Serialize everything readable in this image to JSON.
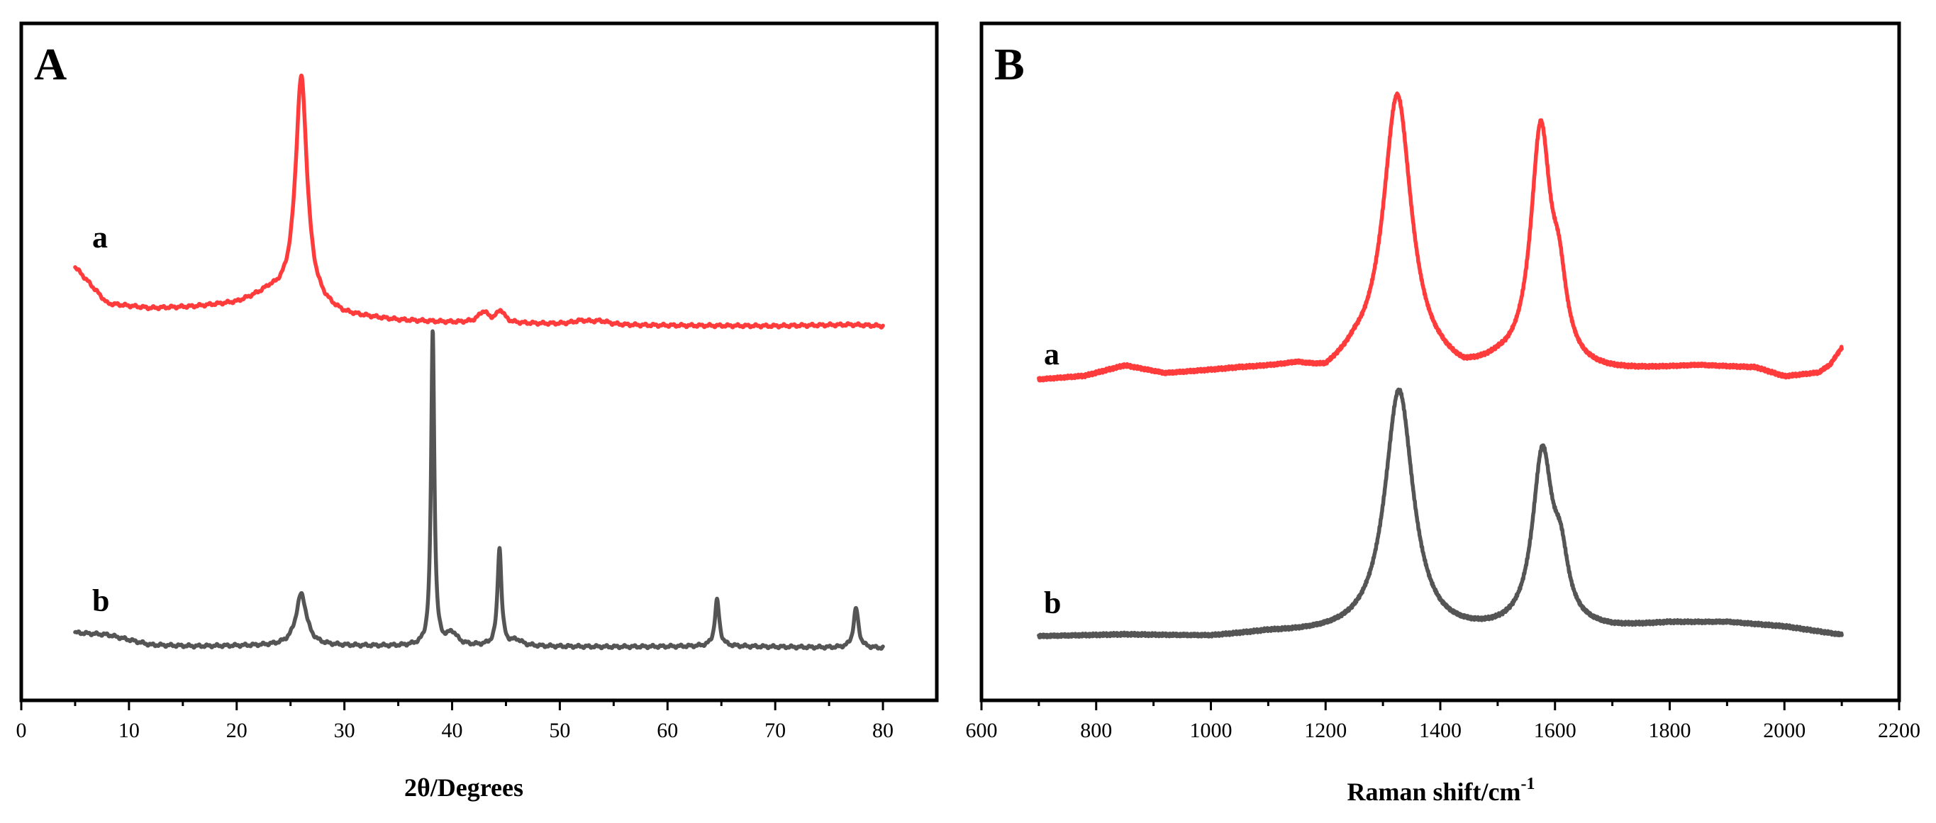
{
  "chart_data": [
    {
      "type": "line",
      "id": "A",
      "panel_label": "A",
      "title": "",
      "xlabel": "2θ/Degrees",
      "ylabel": "",
      "xlim": [
        0,
        85
      ],
      "ylim": [
        0,
        100
      ],
      "grid": false,
      "y_ticks_shown": false,
      "xticks": [
        0,
        10,
        20,
        30,
        40,
        50,
        60,
        70,
        80
      ],
      "xtick_labels": [
        "0",
        "10",
        "20",
        "30",
        "40",
        "50",
        "60",
        "70",
        "80"
      ],
      "series": [
        {
          "name": "a",
          "label": "a",
          "color": "#ff3b3b",
          "baseline": [
            [
              5,
              64
            ],
            [
              8,
              58.6
            ],
            [
              12,
              57.9
            ],
            [
              16,
              58.1
            ],
            [
              20,
              58.6
            ],
            [
              23,
              60
            ],
            [
              30,
              56.8
            ],
            [
              35,
              56.1
            ],
            [
              40,
              55.8
            ],
            [
              48,
              55.6
            ],
            [
              55,
              55.4
            ],
            [
              70,
              55.3
            ],
            [
              77,
              55.5
            ],
            [
              80,
              55.3
            ]
          ],
          "peaks": [
            {
              "x": 26.0,
              "h": 33.5,
              "w": 0.65
            },
            {
              "x": 42.9,
              "h": 1.6,
              "w": 0.55
            },
            {
              "x": 44.5,
              "h": 1.8,
              "w": 0.45
            },
            {
              "x": 52.0,
              "h": 0.5,
              "w": 1.0
            },
            {
              "x": 53.8,
              "h": 0.5,
              "w": 1.0
            }
          ],
          "x_range": [
            5,
            80
          ]
        },
        {
          "name": "b",
          "label": "b",
          "color": "#555555",
          "baseline": [
            [
              5,
              10
            ],
            [
              8,
              9.7
            ],
            [
              12,
              8.2
            ],
            [
              16,
              8
            ],
            [
              25,
              8.1
            ],
            [
              35,
              8
            ],
            [
              45,
              8
            ],
            [
              55,
              7.9
            ],
            [
              65,
              8
            ],
            [
              75,
              7.8
            ],
            [
              80,
              7.7
            ]
          ],
          "peaks": [
            {
              "x": 26.0,
              "h": 7.6,
              "w": 0.6
            },
            {
              "x": 38.2,
              "h": 46.5,
              "w": 0.18
            },
            {
              "x": 40.0,
              "h": 1.8,
              "w": 0.6
            },
            {
              "x": 44.4,
              "h": 14.5,
              "w": 0.22
            },
            {
              "x": 46.0,
              "h": 0.8,
              "w": 0.6
            },
            {
              "x": 64.6,
              "h": 6.8,
              "w": 0.25
            },
            {
              "x": 77.5,
              "h": 5.8,
              "w": 0.28
            }
          ],
          "x_range": [
            5,
            80
          ]
        }
      ]
    },
    {
      "type": "line",
      "id": "B",
      "panel_label": "B",
      "title": "",
      "xlabel": "Raman shift/cm",
      "xlabel_superscript": "-1",
      "ylabel": "",
      "xlim": [
        600,
        2200
      ],
      "ylim": [
        0,
        100
      ],
      "grid": false,
      "y_ticks_shown": false,
      "xticks": [
        600,
        800,
        1000,
        1200,
        1400,
        1600,
        1800,
        2000,
        2200
      ],
      "xtick_labels": [
        "600",
        "800",
        "1000",
        "1200",
        "1400",
        "1600",
        "1800",
        "2000",
        "2200"
      ],
      "series": [
        {
          "name": "a",
          "label": "a",
          "color": "#ff3b3b",
          "baseline": [
            [
              700,
              47.3
            ],
            [
              780,
              47.8
            ],
            [
              850,
              49.3
            ],
            [
              920,
              48.1
            ],
            [
              1050,
              48.7
            ],
            [
              1150,
              48.8
            ],
            [
              1200,
              47.5
            ],
            [
              1250,
              49.3
            ],
            [
              1300,
              48.5
            ],
            [
              1400,
              48
            ],
            [
              1440,
              47.2
            ],
            [
              1500,
              48.5
            ],
            [
              1650,
              48
            ],
            [
              1700,
              48.2
            ],
            [
              1850,
              49.2
            ],
            [
              1950,
              49
            ],
            [
              2000,
              47.7
            ],
            [
              2060,
              48.3
            ],
            [
              2080,
              49.5
            ],
            [
              2100,
              52
            ]
          ],
          "peaks": [
            {
              "x": 1325,
              "h": 40.8,
              "w": 30
            },
            {
              "x": 1575,
              "h": 34.8,
              "w": 21
            },
            {
              "x": 1607,
              "h": 9.5,
              "w": 16
            }
          ],
          "x_range": [
            700,
            2100
          ]
        },
        {
          "name": "b",
          "label": "b",
          "color": "#555555",
          "baseline": [
            [
              700,
              9.4
            ],
            [
              850,
              9.6
            ],
            [
              900,
              9.5
            ],
            [
              1000,
              9.3
            ],
            [
              1100,
              9.8
            ],
            [
              1200,
              9.6
            ],
            [
              1400,
              9.2
            ],
            [
              1500,
              9.6
            ],
            [
              1700,
              10.3
            ],
            [
              1800,
              11.2
            ],
            [
              1900,
              11.4
            ],
            [
              2000,
              10.8
            ],
            [
              2100,
              9.6
            ]
          ],
          "peaks": [
            {
              "x": 1328,
              "h": 36.3,
              "w": 30
            },
            {
              "x": 1578,
              "h": 25.6,
              "w": 21
            },
            {
              "x": 1610,
              "h": 8,
              "w": 16
            }
          ],
          "x_range": [
            700,
            2100
          ]
        }
      ]
    }
  ]
}
